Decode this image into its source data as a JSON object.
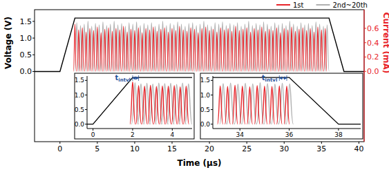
{
  "chart_data": [
    {
      "type": "line",
      "xlabel": "Time (μs)",
      "ylabel": "Voltage (V)",
      "y2label": "Current (mA)",
      "xlim": [
        -3.4,
        40.7
      ],
      "ylim": [
        -2.1,
        1.85
      ],
      "y2lim": [
        -0.98,
        0.86
      ],
      "xticks": [
        0,
        5,
        10,
        15,
        20,
        25,
        30,
        35,
        40
      ],
      "yticks": [
        {
          "value": 0,
          "label": "0.0"
        },
        0.5,
        {
          "value": 1,
          "label": "1.0"
        },
        1.5
      ],
      "y2ticks": [
        {
          "value": 0,
          "label": "0.0"
        },
        0.2,
        0.4,
        0.6
      ],
      "legend": "top-right",
      "series": [
        {
          "type": "line",
          "color": "#000000",
          "x": [
            -3.4,
            0,
            2,
            36,
            38,
            40.7
          ],
          "values": [
            0,
            0,
            1.6,
            1.6,
            0,
            0
          ]
        },
        {
          "name": "1st",
          "type": "spikes",
          "axis": "y2",
          "color": "#e8242a",
          "x": [
            2,
            2.5,
            3,
            3.5,
            4,
            4.5,
            5,
            5.5,
            6,
            6.5,
            7,
            7.5,
            8,
            8.5,
            9,
            9.5,
            10,
            10.5,
            11,
            11.5,
            12,
            12.5,
            13,
            13.5,
            14,
            14.5,
            15,
            15.5,
            16,
            16.5,
            17,
            17.5,
            18,
            18.5,
            19,
            19.5,
            20,
            20.5,
            21,
            21.5,
            22,
            22.5,
            23,
            23.5,
            24,
            24.5,
            25,
            25.5,
            26,
            26.5,
            27,
            27.5,
            28,
            28.5,
            29,
            29.5,
            30,
            30.5,
            31,
            31.5,
            32,
            32.5,
            33,
            33.5,
            34,
            34.5,
            35,
            35.5
          ],
          "values": [
            0.66,
            0.58,
            0.61,
            0.55,
            0.6,
            0.57,
            0.62,
            0.54,
            0.59,
            0.61,
            0.56,
            0.6,
            0.58,
            0.63,
            0.55,
            0.59,
            0.57,
            0.61,
            0.54,
            0.6,
            0.58,
            0.62,
            0.56,
            0.59,
            0.61,
            0.55,
            0.6,
            0.57,
            0.63,
            0.58,
            0.56,
            0.61,
            0.59,
            0.54,
            0.6,
            0.62,
            0.57,
            0.59,
            0.55,
            0.61,
            0.58,
            0.6,
            0.56,
            0.63,
            0.57,
            0.59,
            0.61,
            0.55,
            0.6,
            0.58,
            0.62,
            0.56,
            0.59,
            0.57,
            0.61,
            0.54,
            0.6,
            0.58,
            0.62,
            0.56,
            0.59,
            0.61,
            0.57,
            0.6,
            0.55,
            0.62,
            0.58,
            0.6
          ]
        },
        {
          "name": "2nd~20th",
          "type": "spikes",
          "axis": "y2",
          "color": "#b0b0b0",
          "x": [
            2.25,
            2.75,
            3.25,
            3.75,
            4.25,
            4.75,
            5.25,
            5.75,
            6.25,
            6.75,
            7.25,
            7.75,
            8.25,
            8.75,
            9.25,
            9.75,
            10.25,
            10.75,
            11.25,
            11.75,
            12.25,
            12.75,
            13.25,
            13.75,
            14.25,
            14.75,
            15.25,
            15.75,
            16.25,
            16.75,
            17.25,
            17.75,
            18.25,
            18.75,
            19.25,
            19.75,
            20.25,
            20.75,
            21.25,
            21.75,
            22.25,
            22.75,
            23.25,
            23.75,
            24.25,
            24.75,
            25.25,
            25.75,
            26.25,
            26.75,
            27.25,
            27.75,
            28.25,
            28.75,
            29.25,
            29.75,
            30.25,
            30.75,
            31.25,
            31.75,
            32.25,
            32.75,
            33.25,
            33.75,
            34.25,
            34.75,
            35.25,
            35.75
          ],
          "values": [
            0.68,
            0.64,
            0.66,
            0.7,
            0.63,
            0.67,
            0.65,
            0.69,
            0.64,
            0.66,
            0.7,
            0.65,
            0.67,
            0.63,
            0.68,
            0.66,
            0.69,
            0.64,
            0.67,
            0.65,
            0.68,
            0.63,
            0.66,
            0.7,
            0.64,
            0.67,
            0.65,
            0.69,
            0.66,
            0.63,
            0.67,
            0.68,
            0.64,
            0.66,
            0.7,
            0.65,
            0.63,
            0.68,
            0.66,
            0.69,
            0.64,
            0.67,
            0.65,
            0.68,
            0.63,
            0.66,
            0.7,
            0.64,
            0.67,
            0.65,
            0.69,
            0.66,
            0.63,
            0.68,
            0.65,
            0.67,
            0.64,
            0.7,
            0.66,
            0.63,
            0.68,
            0.65,
            0.67,
            0.64,
            0.69,
            0.66,
            0.63,
            0.65
          ]
        }
      ]
    },
    {
      "type": "line",
      "xlim": [
        -0.3,
        5
      ],
      "ylim": [
        -0.15,
        1.65
      ],
      "xticks": [
        0,
        2,
        4
      ],
      "yticks": [
        {
          "value": 0,
          "label": "0.0"
        },
        0.5,
        {
          "value": 1,
          "label": "1.0"
        },
        1.5
      ],
      "series": [
        {
          "type": "line",
          "color": "#000000",
          "x": [
            -0.3,
            0,
            2,
            5
          ],
          "values": [
            0,
            0,
            1.6,
            1.6
          ]
        },
        {
          "type": "spikes",
          "color": "#e8242a",
          "x": [
            2,
            2.3,
            2.6,
            2.9,
            3.2,
            3.5,
            3.8,
            4.1,
            4.4,
            4.7
          ],
          "values": [
            1.45,
            1.32,
            1.3,
            1.33,
            1.29,
            1.31,
            1.3,
            1.32,
            1.28,
            1.3
          ]
        },
        {
          "type": "spikes",
          "color": "#b0b0b0",
          "x": [
            2.12,
            2.42,
            2.72,
            3.02,
            3.32,
            3.62,
            3.92,
            4.22,
            4.52,
            4.82
          ],
          "values": [
            1.42,
            1.38,
            1.4,
            1.37,
            1.41,
            1.39,
            1.4,
            1.36,
            1.41,
            1.38
          ]
        }
      ],
      "annotations": [
        {
          "text": "t",
          "subscript": "intvl",
          "x": [
            2,
            2.3
          ],
          "y": 1.58
        }
      ]
    },
    {
      "type": "line",
      "xlim": [
        32.9,
        38.9
      ],
      "ylim": [
        -0.15,
        1.65
      ],
      "xticks": [
        34,
        36,
        38
      ],
      "yticks": [
        {
          "value": 0,
          "label": "0.0"
        },
        0.5,
        {
          "value": 1,
          "label": "1.0"
        },
        1.5
      ],
      "series": [
        {
          "type": "line",
          "color": "#000000",
          "x": [
            32.9,
            36,
            38,
            38.9
          ],
          "values": [
            1.6,
            1.6,
            0,
            0
          ]
        },
        {
          "type": "spikes",
          "color": "#e8242a",
          "x": [
            33.2,
            33.5,
            33.8,
            34.1,
            34.4,
            34.7,
            35,
            35.3,
            35.6,
            35.9
          ],
          "values": [
            1.31,
            1.29,
            1.33,
            1.3,
            1.28,
            1.32,
            1.3,
            1.29,
            1.31,
            1.3
          ]
        },
        {
          "type": "spikes",
          "color": "#b0b0b0",
          "x": [
            33.32,
            33.62,
            33.92,
            34.22,
            34.52,
            34.82,
            35.12,
            35.42,
            35.72,
            36.02
          ],
          "values": [
            1.39,
            1.41,
            1.37,
            1.4,
            1.38,
            1.42,
            1.39,
            1.37,
            1.4,
            1.38
          ]
        }
      ],
      "annotations": [
        {
          "text": "t",
          "subscript": "intvl",
          "x": [
            35.6,
            35.9
          ],
          "y": 1.58
        }
      ]
    }
  ]
}
